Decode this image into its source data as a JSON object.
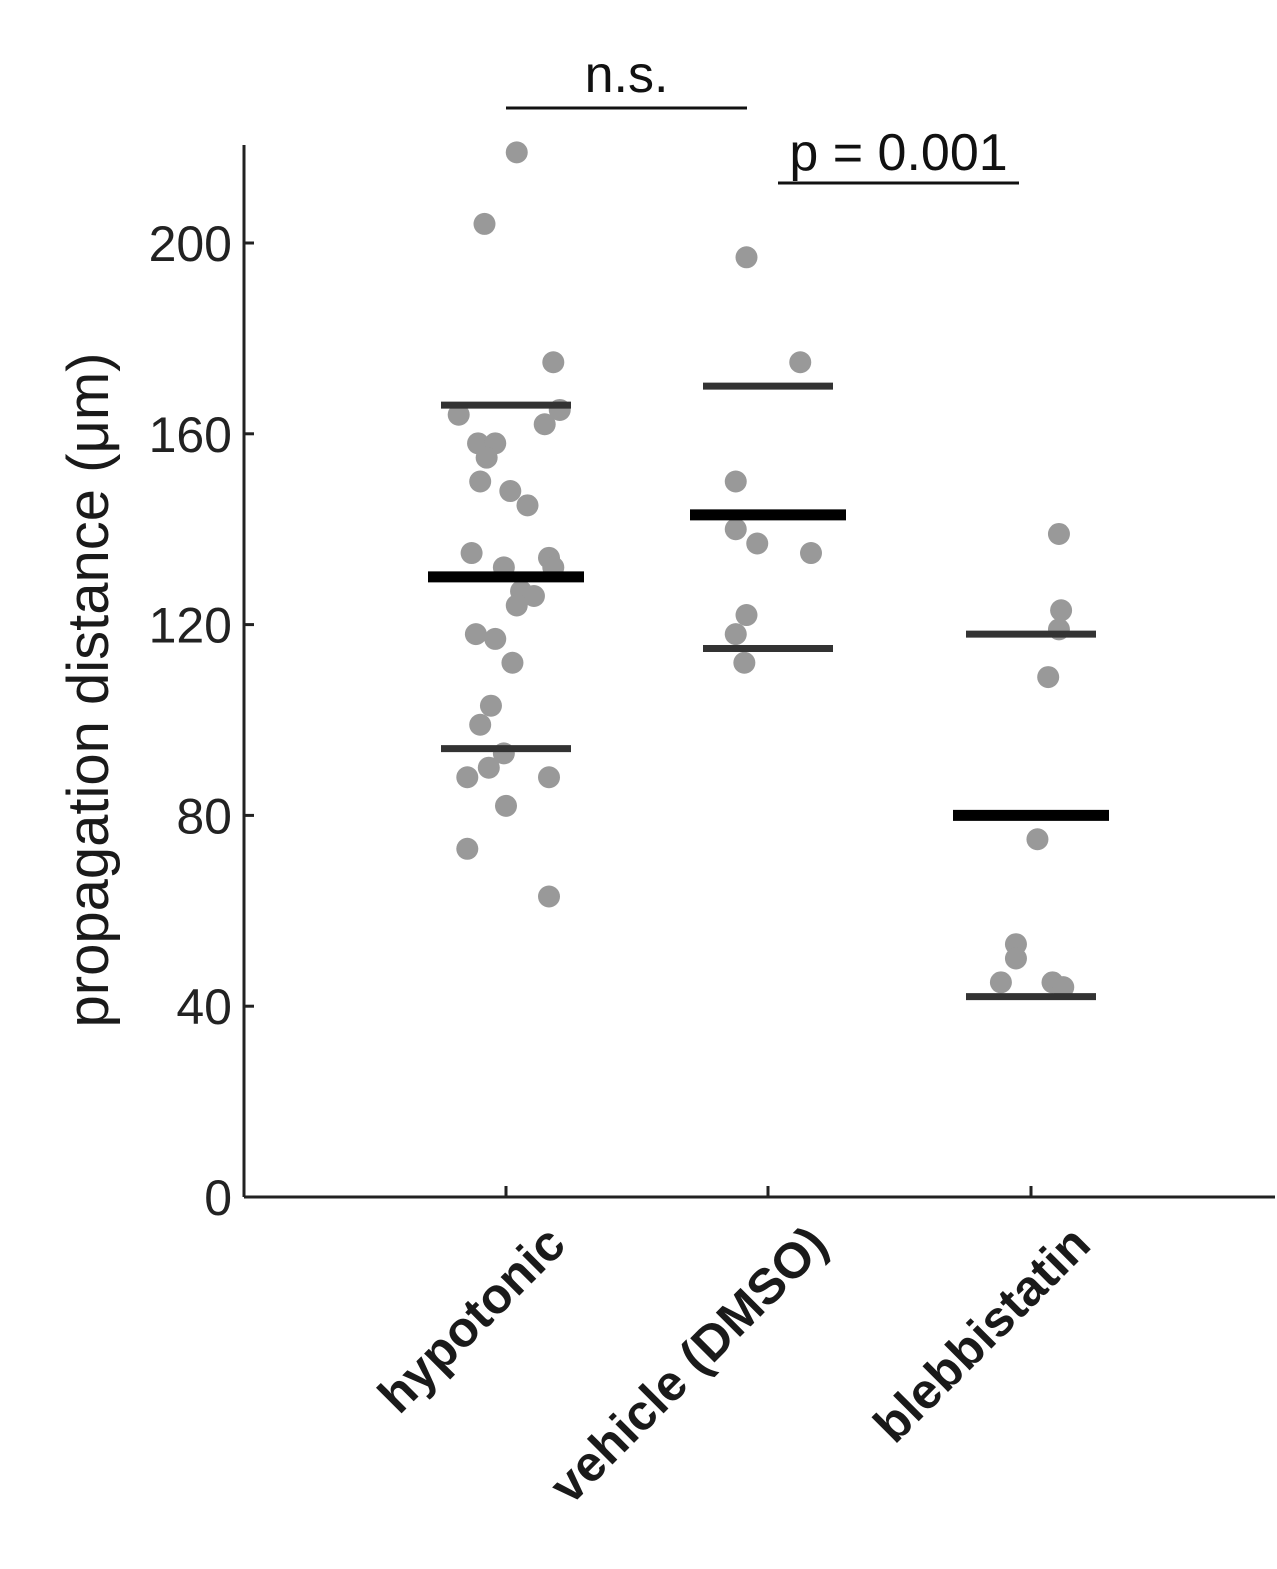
{
  "chart_data": {
    "type": "scatter",
    "ylabel": "propagation distance (μm)",
    "ylim": [
      0,
      220
    ],
    "yticks": [
      0,
      40,
      80,
      120,
      160,
      200
    ],
    "categories": [
      "hypotonic",
      "vehicle (DMSO)",
      "blebbistatin"
    ],
    "series": [
      {
        "category": "hypotonic",
        "points": [
          {
            "jitter": 0.05,
            "y": 219
          },
          {
            "jitter": -0.1,
            "y": 204
          },
          {
            "jitter": 0.22,
            "y": 175
          },
          {
            "jitter": -0.22,
            "y": 164
          },
          {
            "jitter": 0.18,
            "y": 162
          },
          {
            "jitter": 0.25,
            "y": 165
          },
          {
            "jitter": -0.13,
            "y": 158
          },
          {
            "jitter": -0.05,
            "y": 158
          },
          {
            "jitter": -0.09,
            "y": 155
          },
          {
            "jitter": -0.12,
            "y": 150
          },
          {
            "jitter": 0.02,
            "y": 148
          },
          {
            "jitter": 0.1,
            "y": 145
          },
          {
            "jitter": -0.16,
            "y": 135
          },
          {
            "jitter": 0.2,
            "y": 134
          },
          {
            "jitter": 0.22,
            "y": 132
          },
          {
            "jitter": -0.01,
            "y": 132
          },
          {
            "jitter": 0.07,
            "y": 127
          },
          {
            "jitter": 0.13,
            "y": 126
          },
          {
            "jitter": 0.05,
            "y": 124
          },
          {
            "jitter": -0.14,
            "y": 118
          },
          {
            "jitter": -0.05,
            "y": 117
          },
          {
            "jitter": 0.03,
            "y": 112
          },
          {
            "jitter": -0.07,
            "y": 103
          },
          {
            "jitter": -0.12,
            "y": 99
          },
          {
            "jitter": -0.01,
            "y": 93
          },
          {
            "jitter": -0.08,
            "y": 90
          },
          {
            "jitter": -0.18,
            "y": 88
          },
          {
            "jitter": 0.2,
            "y": 88
          },
          {
            "jitter": 0.0,
            "y": 82
          },
          {
            "jitter": -0.18,
            "y": 73
          },
          {
            "jitter": 0.2,
            "y": 63
          }
        ],
        "mean": 130,
        "sd_upper": 166,
        "sd_lower": 94
      },
      {
        "category": "vehicle (DMSO)",
        "points": [
          {
            "jitter": -0.1,
            "y": 197
          },
          {
            "jitter": 0.15,
            "y": 175
          },
          {
            "jitter": -0.15,
            "y": 150
          },
          {
            "jitter": -0.15,
            "y": 140
          },
          {
            "jitter": -0.05,
            "y": 137
          },
          {
            "jitter": 0.2,
            "y": 135
          },
          {
            "jitter": -0.1,
            "y": 122
          },
          {
            "jitter": -0.15,
            "y": 118
          },
          {
            "jitter": -0.11,
            "y": 112
          }
        ],
        "mean": 143,
        "sd_upper": 170,
        "sd_lower": 115
      },
      {
        "category": "blebbistatin",
        "points": [
          {
            "jitter": 0.13,
            "y": 139
          },
          {
            "jitter": 0.14,
            "y": 123
          },
          {
            "jitter": 0.13,
            "y": 119
          },
          {
            "jitter": 0.08,
            "y": 109
          },
          {
            "jitter": 0.03,
            "y": 75
          },
          {
            "jitter": -0.07,
            "y": 53
          },
          {
            "jitter": -0.07,
            "y": 50
          },
          {
            "jitter": -0.14,
            "y": 45
          },
          {
            "jitter": 0.1,
            "y": 45
          },
          {
            "jitter": 0.15,
            "y": 44
          }
        ],
        "mean": 80,
        "sd_upper": 118,
        "sd_lower": 42
      }
    ],
    "annotations": [
      {
        "text": "n.s.",
        "from": "hypotonic",
        "to": "vehicle (DMSO)"
      },
      {
        "text": "p = 0.001",
        "from": "vehicle (DMSO)",
        "to": "blebbistatin"
      }
    ],
    "grid": false,
    "legend": "none",
    "colors": {
      "points": "#999999",
      "mean": "#000000",
      "sd": "#333333",
      "axis": "#222222"
    }
  }
}
